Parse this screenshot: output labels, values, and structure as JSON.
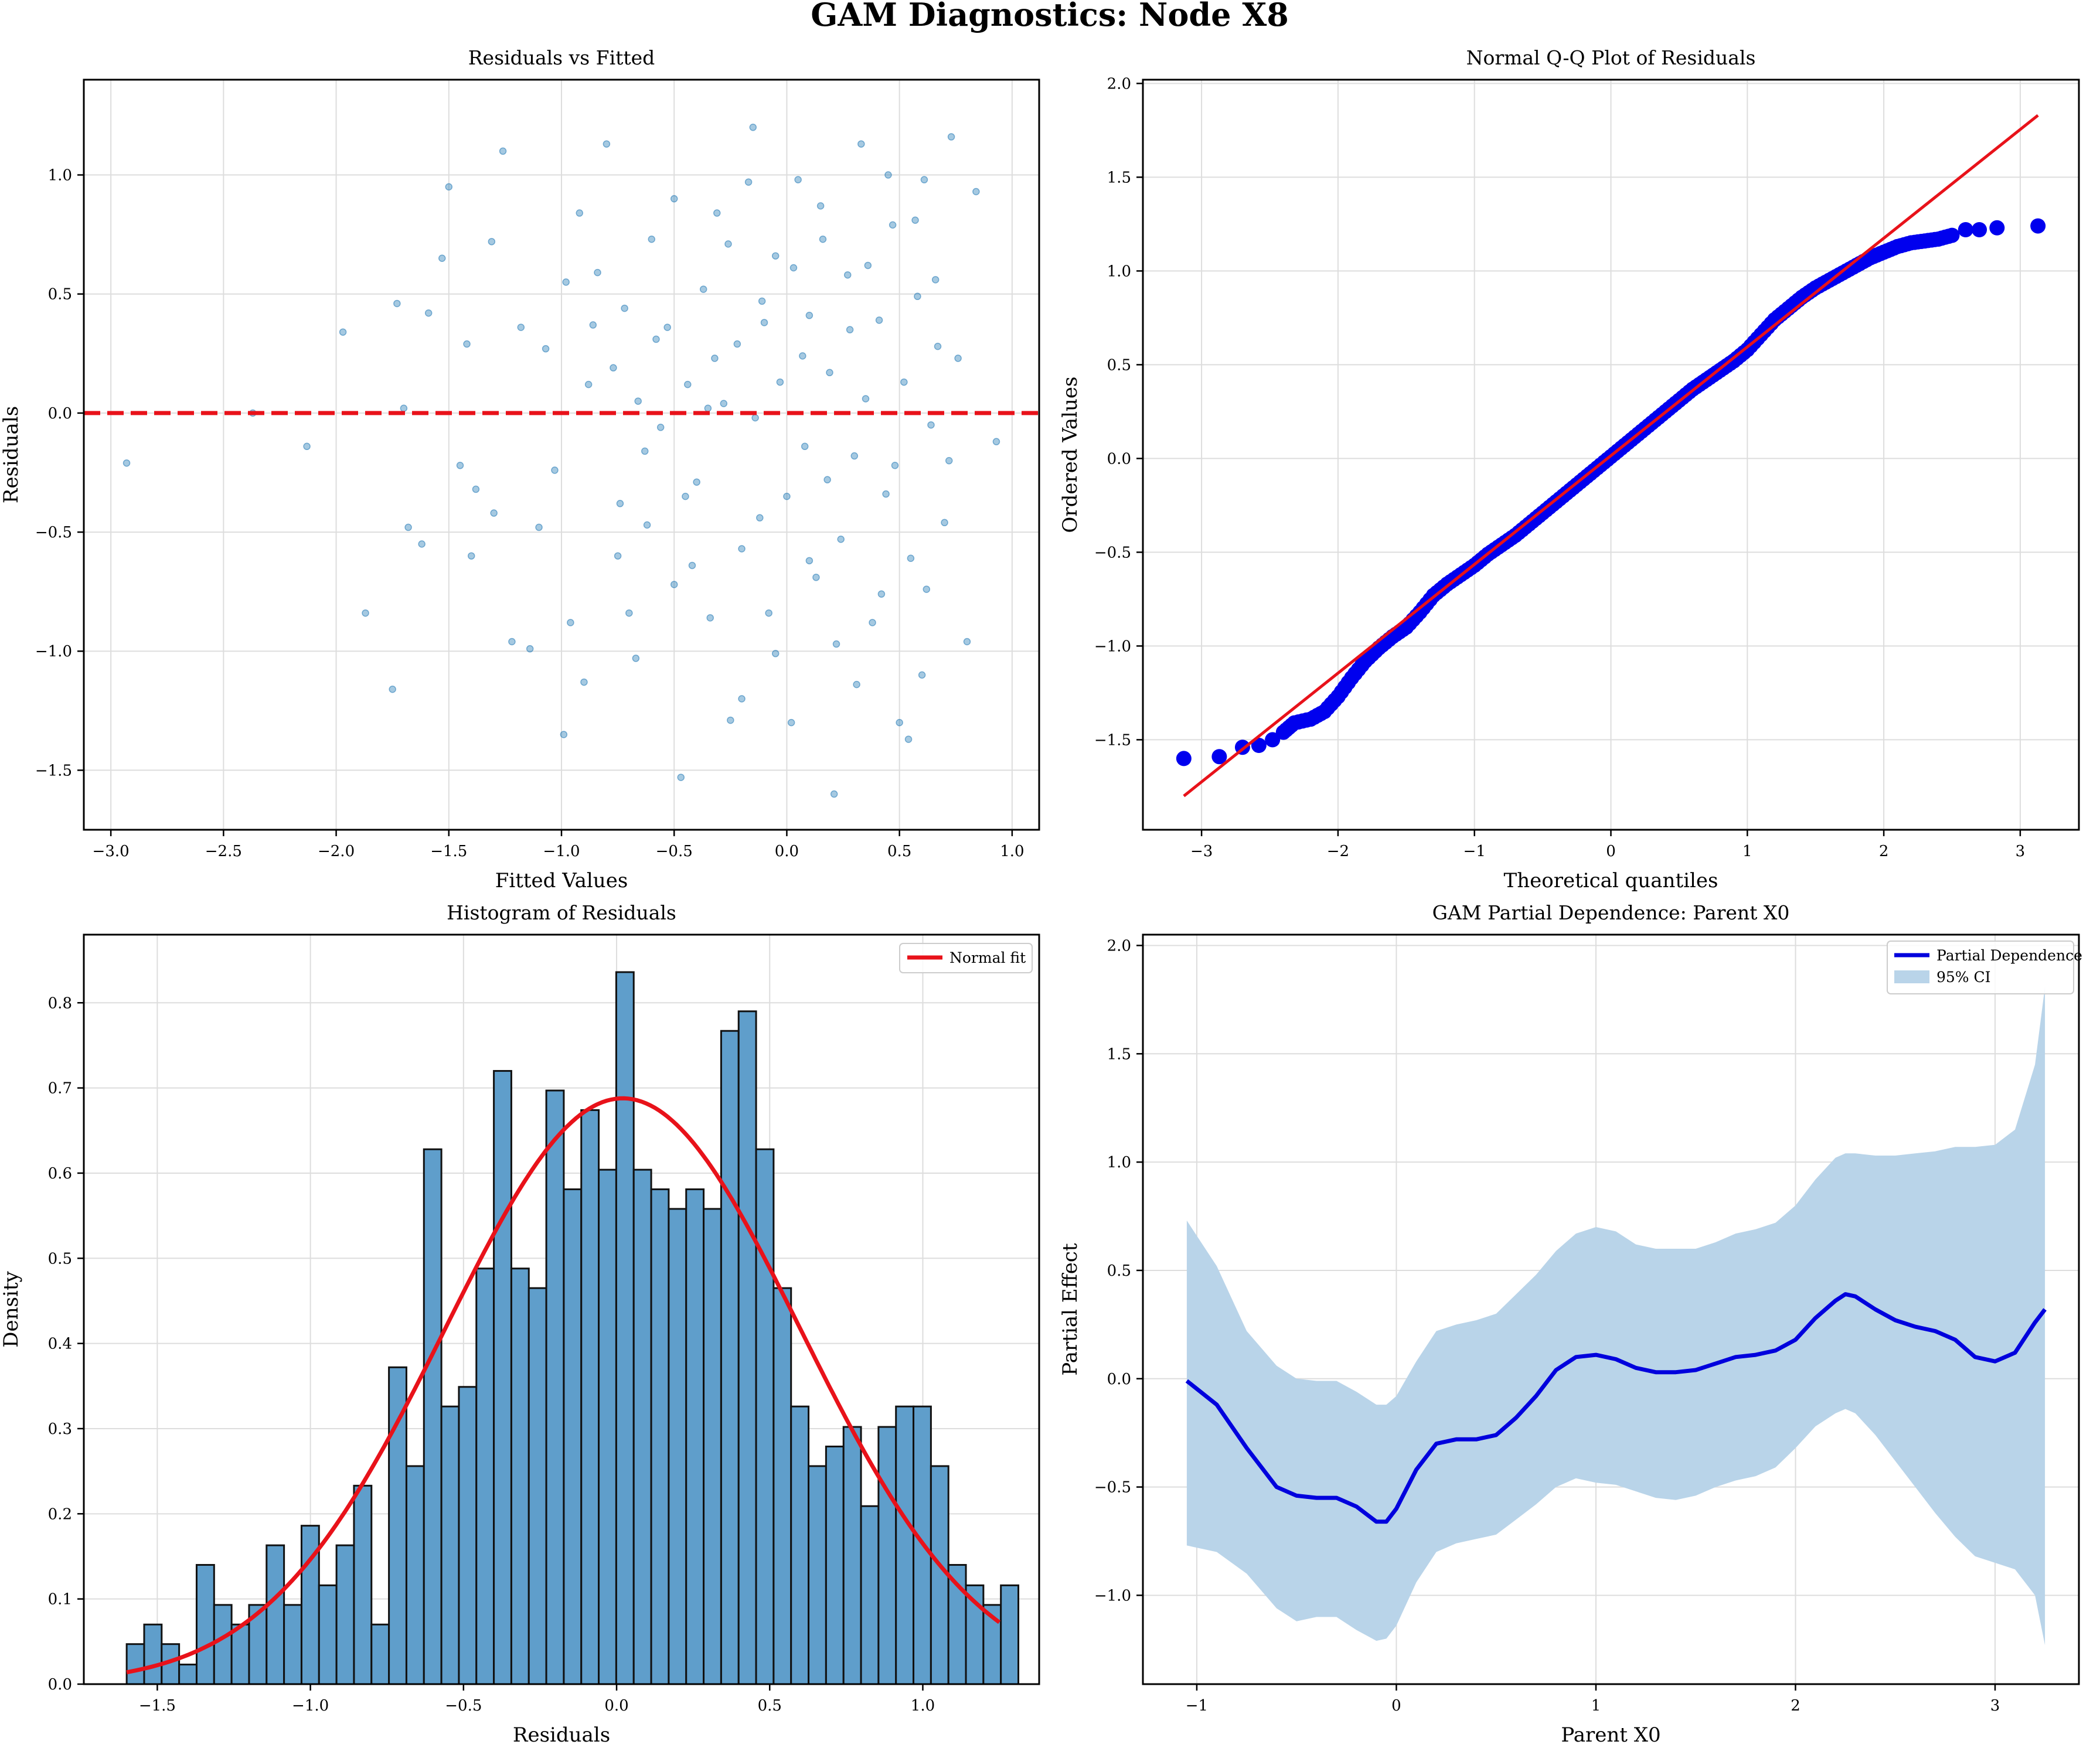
{
  "figure": {
    "title": "GAM Diagnostics: Node X8"
  },
  "chart_data": [
    {
      "type": "scatter",
      "title": "Residuals vs Fitted",
      "xlabel": "Fitted Values",
      "ylabel": "Residuals",
      "xlim": [
        -3.12,
        1.12
      ],
      "ylim": [
        -1.75,
        1.4
      ],
      "xticks": [
        -3.0,
        -2.5,
        -2.0,
        -1.5,
        -1.0,
        -0.5,
        0.0,
        0.5,
        1.0
      ],
      "xtick_labels": [
        "−3.0",
        "−2.5",
        "−2.0",
        "−1.5",
        "−1.0",
        "−0.5",
        "0.0",
        "0.5",
        "1.0"
      ],
      "yticks": [
        -1.5,
        -1.0,
        -0.5,
        0.0,
        0.5,
        1.0
      ],
      "ytick_labels": [
        "−1.5",
        "−1.0",
        "−0.5",
        "0.0",
        "0.5",
        "1.0"
      ],
      "grid": true,
      "reference_line": {
        "y": 0,
        "style": "dashed",
        "color": "#e8121a"
      },
      "point_color": "#1f77b4",
      "points": [
        [
          -2.93,
          -0.21
        ],
        [
          -2.37,
          0.0
        ],
        [
          -2.13,
          -0.14
        ],
        [
          -1.97,
          0.34
        ],
        [
          -1.87,
          -0.84
        ],
        [
          -1.75,
          -1.16
        ],
        [
          -1.73,
          0.46
        ],
        [
          -1.7,
          0.02
        ],
        [
          -1.68,
          -0.48
        ],
        [
          -1.62,
          -0.55
        ],
        [
          -1.59,
          0.42
        ],
        [
          -1.53,
          0.65
        ],
        [
          -1.5,
          0.95
        ],
        [
          -1.45,
          -0.22
        ],
        [
          -1.42,
          0.29
        ],
        [
          -1.4,
          -0.6
        ],
        [
          -1.38,
          -0.32
        ],
        [
          -1.31,
          0.72
        ],
        [
          -1.3,
          -0.42
        ],
        [
          -1.26,
          1.1
        ],
        [
          -1.22,
          -0.96
        ],
        [
          -1.18,
          0.36
        ],
        [
          -1.14,
          -0.99
        ],
        [
          -1.1,
          -0.48
        ],
        [
          -1.07,
          0.27
        ],
        [
          -1.03,
          -0.24
        ],
        [
          -0.99,
          -1.35
        ],
        [
          -0.96,
          -0.88
        ],
        [
          -0.92,
          0.84
        ],
        [
          -0.9,
          -1.13
        ],
        [
          -0.86,
          0.37
        ],
        [
          -0.84,
          0.59
        ],
        [
          -0.8,
          1.13
        ],
        [
          -0.77,
          0.19
        ],
        [
          -0.74,
          -0.38
        ],
        [
          -0.72,
          0.44
        ],
        [
          -0.7,
          -0.84
        ],
        [
          -0.66,
          0.05
        ],
        [
          -0.63,
          -0.16
        ],
        [
          -0.6,
          0.73
        ],
        [
          -0.56,
          -0.06
        ],
        [
          -0.53,
          0.36
        ],
        [
          -0.5,
          -0.72
        ],
        [
          -0.47,
          -1.53
        ],
        [
          -0.44,
          0.12
        ],
        [
          -0.4,
          -0.29
        ],
        [
          -0.37,
          0.52
        ],
        [
          -0.34,
          -0.86
        ],
        [
          -0.31,
          0.84
        ],
        [
          -0.28,
          0.04
        ],
        [
          -0.25,
          -1.29
        ],
        [
          -0.22,
          0.29
        ],
        [
          -0.2,
          -0.57
        ],
        [
          -0.17,
          0.97
        ],
        [
          -0.14,
          -0.02
        ],
        [
          -0.11,
          0.47
        ],
        [
          -0.08,
          -0.84
        ],
        [
          -0.05,
          0.66
        ],
        [
          -0.03,
          0.13
        ],
        [
          0.0,
          -0.35
        ],
        [
          0.02,
          -1.3
        ],
        [
          0.05,
          0.98
        ],
        [
          0.08,
          -0.14
        ],
        [
          0.1,
          0.41
        ],
        [
          0.13,
          -0.69
        ],
        [
          0.16,
          0.73
        ],
        [
          0.19,
          0.17
        ],
        [
          0.21,
          -1.6
        ],
        [
          0.24,
          -0.53
        ],
        [
          0.27,
          0.58
        ],
        [
          0.3,
          -0.18
        ],
        [
          0.33,
          1.13
        ],
        [
          0.35,
          0.06
        ],
        [
          0.38,
          -0.88
        ],
        [
          0.41,
          0.39
        ],
        [
          0.44,
          -0.34
        ],
        [
          0.47,
          0.79
        ],
        [
          0.5,
          -1.3
        ],
        [
          0.52,
          0.13
        ],
        [
          0.55,
          -0.61
        ],
        [
          0.58,
          0.49
        ],
        [
          0.61,
          0.98
        ],
        [
          0.64,
          -0.05
        ],
        [
          0.67,
          0.28
        ],
        [
          0.7,
          -0.46
        ],
        [
          0.73,
          1.16
        ],
        [
          0.76,
          0.23
        ],
        [
          0.8,
          -0.96
        ],
        [
          0.84,
          0.93
        ],
        [
          0.93,
          -0.12
        ],
        [
          -0.58,
          0.31
        ],
        [
          -0.42,
          -0.64
        ],
        [
          -0.26,
          0.71
        ],
        [
          -0.12,
          -0.44
        ],
        [
          0.07,
          0.24
        ],
        [
          0.22,
          -0.97
        ],
        [
          0.36,
          0.62
        ],
        [
          0.48,
          -0.22
        ],
        [
          0.6,
          -1.1
        ],
        [
          -0.67,
          -1.03
        ],
        [
          -0.88,
          0.12
        ],
        [
          -0.15,
          1.2
        ],
        [
          0.31,
          -1.14
        ],
        [
          0.57,
          0.81
        ],
        [
          -0.35,
          0.02
        ],
        [
          -0.05,
          -1.01
        ],
        [
          0.15,
          0.87
        ],
        [
          0.42,
          -0.76
        ],
        [
          0.66,
          0.56
        ],
        [
          -0.75,
          -0.6
        ],
        [
          -0.5,
          0.9
        ],
        [
          -0.2,
          -1.2
        ],
        [
          0.1,
          -0.62
        ],
        [
          0.28,
          0.35
        ],
        [
          0.54,
          -1.37
        ],
        [
          0.72,
          -0.2
        ],
        [
          -0.98,
          0.55
        ],
        [
          -0.62,
          -0.47
        ],
        [
          -0.32,
          0.23
        ],
        [
          0.03,
          0.61
        ],
        [
          0.18,
          -0.28
        ],
        [
          0.45,
          1.0
        ],
        [
          0.62,
          -0.74
        ],
        [
          -0.45,
          -0.35
        ],
        [
          -0.1,
          0.38
        ]
      ]
    },
    {
      "type": "scatter",
      "title": "Normal Q-Q Plot of Residuals",
      "xlabel": "Theoretical quantiles",
      "ylabel": "Ordered Values",
      "xlim": [
        -3.43,
        3.43
      ],
      "ylim": [
        -1.98,
        2.02
      ],
      "xticks": [
        -3,
        -2,
        -1,
        0,
        1,
        2,
        3
      ],
      "xtick_labels": [
        "−3",
        "−2",
        "−1",
        "0",
        "1",
        "2",
        "3"
      ],
      "yticks": [
        -1.5,
        -1.0,
        -0.5,
        0.0,
        0.5,
        1.0,
        1.5,
        2.0
      ],
      "ytick_labels": [
        "−1.5",
        "−1.0",
        "−0.5",
        "0.0",
        "0.5",
        "1.0",
        "1.5",
        "2.0"
      ],
      "grid": true,
      "point_color": "#0000ee",
      "line_color": "#e8121a",
      "reference_line": {
        "x": [
          -3.13,
          3.13
        ],
        "y": [
          -1.8,
          1.83
        ]
      },
      "points": [
        [
          -3.13,
          -1.6
        ],
        [
          -2.87,
          -1.59
        ],
        [
          -2.7,
          -1.54
        ],
        [
          -2.58,
          -1.53
        ],
        [
          -2.48,
          -1.5
        ],
        [
          -2.4,
          -1.46
        ],
        [
          -2.32,
          -1.41
        ],
        [
          -2.2,
          -1.39
        ],
        [
          -2.1,
          -1.35
        ],
        [
          -2.0,
          -1.27
        ],
        [
          -1.9,
          -1.17
        ],
        [
          -1.8,
          -1.08
        ],
        [
          -1.7,
          -1.01
        ],
        [
          -1.6,
          -0.95
        ],
        [
          -1.5,
          -0.9
        ],
        [
          -1.4,
          -0.82
        ],
        [
          -1.3,
          -0.73
        ],
        [
          -1.2,
          -0.67
        ],
        [
          -1.1,
          -0.62
        ],
        [
          -1.0,
          -0.57
        ],
        [
          -0.9,
          -0.51
        ],
        [
          -0.8,
          -0.46
        ],
        [
          -0.7,
          -0.41
        ],
        [
          -0.6,
          -0.35
        ],
        [
          -0.5,
          -0.29
        ],
        [
          -0.4,
          -0.23
        ],
        [
          -0.3,
          -0.17
        ],
        [
          -0.2,
          -0.11
        ],
        [
          -0.1,
          -0.05
        ],
        [
          0.0,
          0.01
        ],
        [
          0.1,
          0.07
        ],
        [
          0.2,
          0.13
        ],
        [
          0.3,
          0.19
        ],
        [
          0.4,
          0.25
        ],
        [
          0.5,
          0.31
        ],
        [
          0.6,
          0.37
        ],
        [
          0.7,
          0.42
        ],
        [
          0.8,
          0.47
        ],
        [
          0.9,
          0.52
        ],
        [
          1.0,
          0.58
        ],
        [
          1.1,
          0.66
        ],
        [
          1.2,
          0.74
        ],
        [
          1.3,
          0.8
        ],
        [
          1.4,
          0.86
        ],
        [
          1.5,
          0.91
        ],
        [
          1.6,
          0.95
        ],
        [
          1.7,
          0.99
        ],
        [
          1.8,
          1.03
        ],
        [
          1.9,
          1.07
        ],
        [
          2.0,
          1.1
        ],
        [
          2.1,
          1.13
        ],
        [
          2.2,
          1.15
        ],
        [
          2.3,
          1.16
        ],
        [
          2.4,
          1.17
        ],
        [
          2.5,
          1.19
        ],
        [
          2.6,
          1.22
        ],
        [
          2.7,
          1.22
        ],
        [
          2.83,
          1.23
        ],
        [
          3.13,
          1.24
        ]
      ]
    },
    {
      "type": "bar",
      "title": "Histogram of Residuals",
      "xlabel": "Residuals",
      "ylabel": "Density",
      "xlim": [
        -1.74,
        1.38
      ],
      "ylim": [
        0,
        0.88
      ],
      "xticks": [
        -1.5,
        -1.0,
        -0.5,
        0.0,
        0.5,
        1.0
      ],
      "xtick_labels": [
        "−1.5",
        "−1.0",
        "−0.5",
        "0.0",
        "0.5",
        "1.0"
      ],
      "yticks": [
        0.0,
        0.1,
        0.2,
        0.3,
        0.4,
        0.5,
        0.6,
        0.7,
        0.8
      ],
      "ytick_labels": [
        "0.0",
        "0.1",
        "0.2",
        "0.3",
        "0.4",
        "0.5",
        "0.6",
        "0.7",
        "0.8"
      ],
      "grid": true,
      "bar_color": "#5f9ecb",
      "bin_start": -1.6,
      "bin_width": 0.0571,
      "values": [
        0.047,
        0.07,
        0.047,
        0.023,
        0.14,
        0.093,
        0.07,
        0.093,
        0.163,
        0.093,
        0.186,
        0.116,
        0.163,
        0.233,
        0.07,
        0.372,
        0.256,
        0.628,
        0.326,
        0.349,
        0.488,
        0.72,
        0.488,
        0.465,
        0.697,
        0.581,
        0.674,
        0.604,
        0.836,
        0.604,
        0.581,
        0.558,
        0.581,
        0.558,
        0.767,
        0.79,
        0.628,
        0.465,
        0.326,
        0.256,
        0.279,
        0.302,
        0.209,
        0.302,
        0.326,
        0.326,
        0.256,
        0.14,
        0.116,
        0.093,
        0.116
      ],
      "legend": {
        "entries": [
          "Normal fit"
        ],
        "position": "upper right"
      },
      "fit": {
        "name": "Normal fit",
        "mean": 0.02,
        "std": 0.58,
        "x_range": [
          -1.6,
          1.25
        ],
        "color": "#e8121a"
      }
    },
    {
      "type": "line",
      "title": "GAM Partial Dependence: Parent X0",
      "xlabel": "Parent X0",
      "ylabel": "Partial Effect",
      "xlim": [
        -1.27,
        3.42
      ],
      "ylim": [
        -1.41,
        2.05
      ],
      "xticks": [
        -1,
        0,
        1,
        2,
        3
      ],
      "xtick_labels": [
        "−1",
        "0",
        "1",
        "2",
        "3"
      ],
      "yticks": [
        -1.0,
        -0.5,
        0.0,
        0.5,
        1.0,
        1.5,
        2.0
      ],
      "ytick_labels": [
        "−1.0",
        "−0.5",
        "0.0",
        "0.5",
        "1.0",
        "1.5",
        "2.0"
      ],
      "grid": true,
      "legend": {
        "entries": [
          "Partial Dependence",
          "95% CI"
        ],
        "position": "upper right"
      },
      "line_color": "#0000dd",
      "band_color": "#b9d4e9",
      "x": [
        -1.05,
        -0.9,
        -0.75,
        -0.6,
        -0.5,
        -0.4,
        -0.3,
        -0.2,
        -0.1,
        -0.05,
        0.0,
        0.1,
        0.2,
        0.3,
        0.4,
        0.5,
        0.6,
        0.7,
        0.8,
        0.9,
        1.0,
        1.1,
        1.2,
        1.3,
        1.4,
        1.5,
        1.6,
        1.7,
        1.8,
        1.9,
        2.0,
        2.1,
        2.2,
        2.25,
        2.3,
        2.4,
        2.5,
        2.6,
        2.7,
        2.8,
        2.9,
        3.0,
        3.1,
        3.2,
        3.25
      ],
      "series": [
        {
          "name": "Partial Dependence",
          "values": [
            -0.01,
            -0.12,
            -0.32,
            -0.5,
            -0.54,
            -0.55,
            -0.55,
            -0.59,
            -0.66,
            -0.66,
            -0.6,
            -0.42,
            -0.3,
            -0.28,
            -0.28,
            -0.26,
            -0.18,
            -0.08,
            0.04,
            0.1,
            0.11,
            0.09,
            0.05,
            0.03,
            0.03,
            0.04,
            0.07,
            0.1,
            0.11,
            0.13,
            0.18,
            0.28,
            0.36,
            0.39,
            0.38,
            0.32,
            0.27,
            0.24,
            0.22,
            0.18,
            0.1,
            0.08,
            0.12,
            0.26,
            0.32
          ]
        },
        {
          "name": "95% CI",
          "lower": [
            -0.77,
            -0.8,
            -0.9,
            -1.06,
            -1.12,
            -1.1,
            -1.1,
            -1.16,
            -1.21,
            -1.2,
            -1.14,
            -0.94,
            -0.8,
            -0.76,
            -0.74,
            -0.72,
            -0.65,
            -0.58,
            -0.5,
            -0.46,
            -0.48,
            -0.49,
            -0.52,
            -0.55,
            -0.56,
            -0.54,
            -0.5,
            -0.47,
            -0.45,
            -0.41,
            -0.32,
            -0.22,
            -0.16,
            -0.14,
            -0.16,
            -0.26,
            -0.38,
            -0.5,
            -0.62,
            -0.73,
            -0.82,
            -0.85,
            -0.88,
            -1.0,
            -1.23
          ],
          "upper": [
            0.73,
            0.52,
            0.22,
            0.06,
            0.0,
            -0.01,
            -0.01,
            -0.06,
            -0.12,
            -0.12,
            -0.08,
            0.08,
            0.22,
            0.25,
            0.27,
            0.3,
            0.39,
            0.48,
            0.59,
            0.67,
            0.7,
            0.68,
            0.62,
            0.6,
            0.6,
            0.6,
            0.63,
            0.67,
            0.69,
            0.72,
            0.8,
            0.92,
            1.02,
            1.04,
            1.04,
            1.03,
            1.03,
            1.04,
            1.05,
            1.07,
            1.07,
            1.08,
            1.15,
            1.45,
            1.81
          ]
        }
      ]
    }
  ]
}
